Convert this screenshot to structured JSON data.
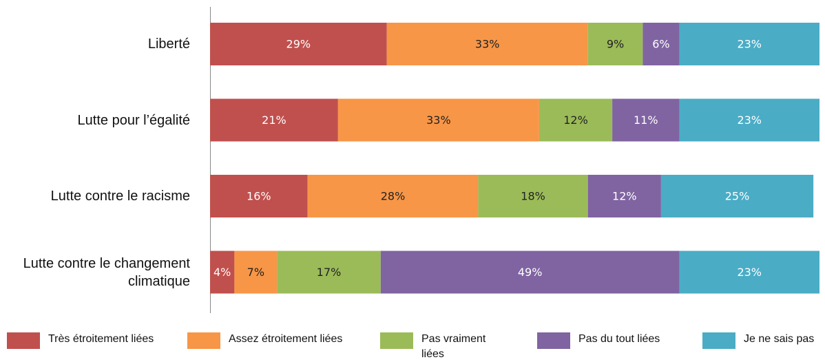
{
  "chart_data": {
    "type": "stacked-bar-horizontal",
    "categories": [
      "Liberté",
      "Lutte pour l’égalité",
      "Lutte contre le racisme",
      "Lutte contre le changement climatique"
    ],
    "series": [
      {
        "name": "Très étroitement liées",
        "color": "#c0504d",
        "values": [
          29,
          21,
          16,
          4
        ],
        "value_labels": [
          "29%",
          "21%",
          "16%",
          "4%"
        ]
      },
      {
        "name": "Assez étroitement liées",
        "color": "#f79646",
        "values": [
          33,
          33,
          28,
          7
        ],
        "value_labels": [
          "33%",
          "33%",
          "28%",
          "7%"
        ]
      },
      {
        "name": "Pas vraiment liées",
        "color": "#9bbb59",
        "values": [
          9,
          12,
          18,
          17
        ],
        "value_labels": [
          "9%",
          "12%",
          "18%",
          "17%"
        ]
      },
      {
        "name": "Pas du tout liées",
        "color": "#8064a2",
        "values": [
          6,
          11,
          12,
          49
        ],
        "value_labels": [
          "6%",
          "11%",
          "12%",
          "49%"
        ]
      },
      {
        "name": "Je ne sais pas",
        "color": "#4bacc6",
        "values": [
          23,
          23,
          25,
          23
        ],
        "value_labels": [
          "23%",
          "23%",
          "25%",
          "23%"
        ]
      }
    ],
    "xlim": [
      0,
      100
    ],
    "legend": "bottom"
  }
}
